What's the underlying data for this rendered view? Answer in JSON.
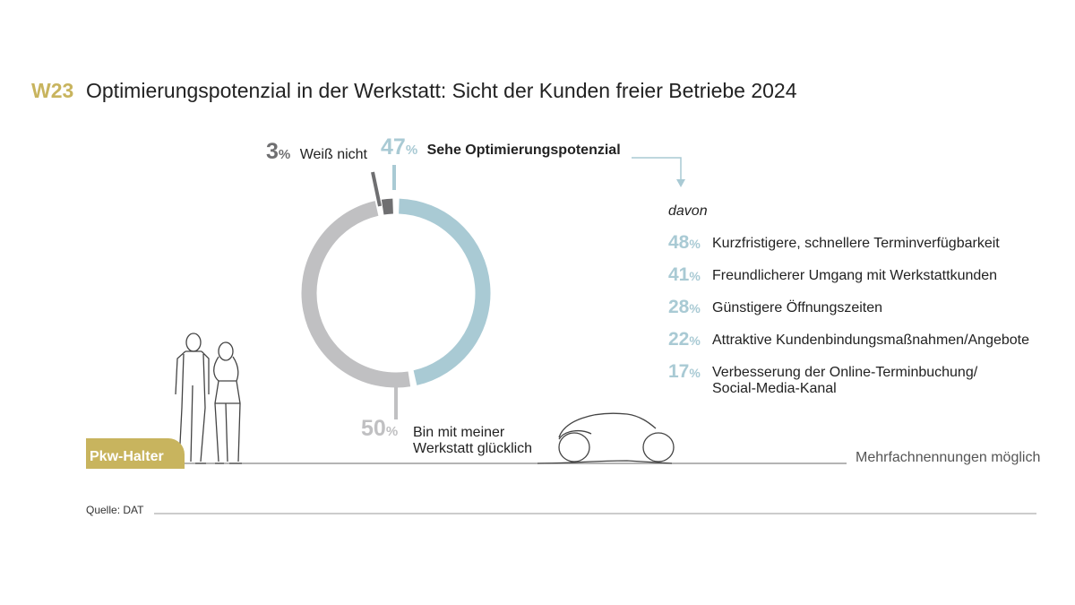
{
  "header": {
    "code": "W23",
    "title": "Optimierungspotenzial in der Werkstatt: Sicht der Kunden freier Betriebe 2024"
  },
  "chart_data": {
    "type": "pie",
    "style": "donut",
    "slices": [
      {
        "value": 47,
        "label": "Sehe Optimierungspotenzial",
        "color": "#a9cad4"
      },
      {
        "value": 50,
        "label": "Bin mit meiner Werkstatt glücklich",
        "color": "#c0c0c2"
      },
      {
        "value": 3,
        "label": "Weiß nicht",
        "color": "#6f6f71"
      }
    ],
    "percent_sign": "%",
    "breakdown": {
      "intro": "davon",
      "items": [
        {
          "value": 48,
          "label": "Kurzfristigere, schnellere Terminverfügbarkeit"
        },
        {
          "value": 41,
          "label": "Freundlicherer Umgang mit Werkstattkunden"
        },
        {
          "value": 28,
          "label": "Günstigere Öffnungszeiten"
        },
        {
          "value": 22,
          "label": "Attraktive Kundenbindungsmaßnahmen/Angebote"
        },
        {
          "value": 17,
          "label": "Verbesserung der Online-Terminbuchung/ Social-Media-Kanal"
        }
      ]
    },
    "note": "Mehrfachnennungen möglich"
  },
  "badge": {
    "label": "Pkw-Halter"
  },
  "footer": {
    "source": "Quelle: DAT"
  },
  "colors": {
    "accent": "#c8b45e",
    "blue": "#a9cad4",
    "light_grey": "#c0c0c2",
    "dark_grey": "#6f6f71"
  }
}
